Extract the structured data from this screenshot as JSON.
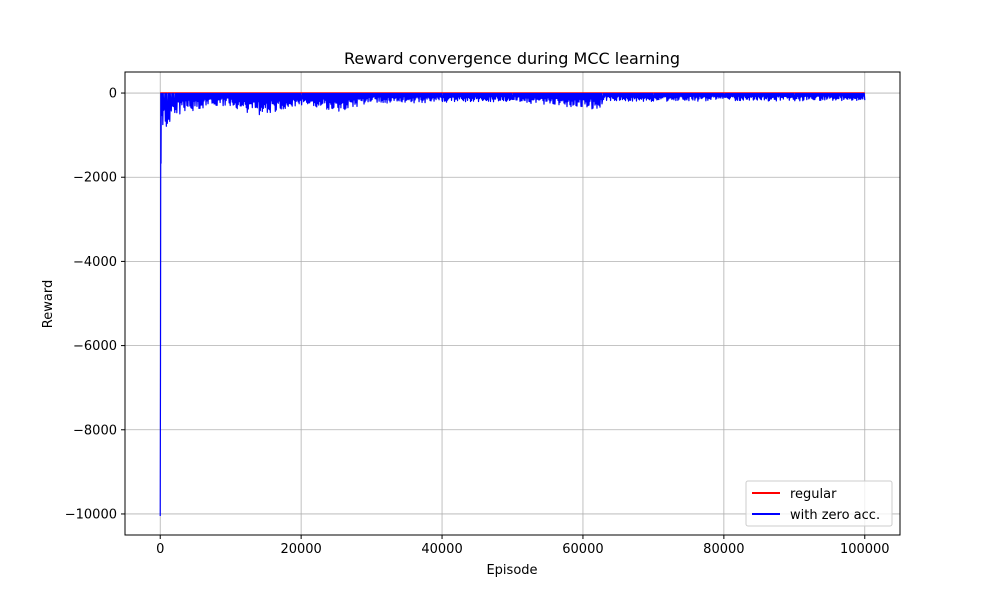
{
  "chart_data": {
    "type": "line",
    "title": "Reward convergence during MCC learning",
    "xlabel": "Episode",
    "ylabel": "Reward",
    "xlim": [
      -5000,
      105000
    ],
    "ylim": [
      -10500,
      500
    ],
    "xticks": [
      0,
      20000,
      40000,
      60000,
      80000,
      100000
    ],
    "xtick_labels": [
      "0",
      "20000",
      "40000",
      "60000",
      "80000",
      "100000"
    ],
    "yticks": [
      0,
      -2000,
      -4000,
      -6000,
      -8000,
      -10000
    ],
    "ytick_labels": [
      "0",
      "−2000",
      "−4000",
      "−6000",
      "−8000",
      "−10000"
    ],
    "grid": true,
    "legend_position": "lower-right",
    "series": [
      {
        "name": "regular",
        "color": "#ff0000",
        "x": [
          0,
          100000
        ],
        "y": [
          0,
          0
        ]
      },
      {
        "name": "with zero acc.",
        "color": "#0000ff",
        "x": [
          0,
          80,
          150,
          300,
          500,
          800,
          1000,
          1500,
          2000,
          3000,
          5000,
          8000,
          10000,
          14000,
          20000,
          25000,
          30000,
          40000,
          50000,
          62700,
          63000,
          70000,
          80000,
          90000,
          100000
        ],
        "y": [
          -10050,
          -2800,
          -1500,
          -900,
          -700,
          -800,
          -1000,
          -650,
          -600,
          -500,
          -420,
          -350,
          -330,
          -550,
          -280,
          -450,
          -240,
          -230,
          -210,
          -420,
          -200,
          -200,
          -190,
          -190,
          -180
        ]
      }
    ]
  }
}
